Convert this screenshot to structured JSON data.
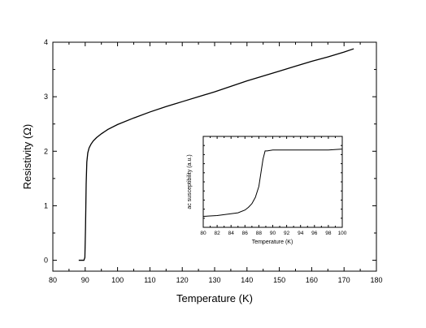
{
  "chart_data": [
    {
      "type": "line",
      "xlabel": "Temperature (K)",
      "ylabel": "Resistivity (Ω)",
      "xlim": [
        80,
        180
      ],
      "ylim": [
        -0.2,
        4.0
      ],
      "xticks": [
        80,
        90,
        100,
        110,
        120,
        130,
        140,
        150,
        160,
        170,
        180
      ],
      "yticks": [
        0,
        1,
        2,
        3,
        4
      ],
      "grid": false,
      "series": [
        {
          "x": [
            88,
            89.6,
            89.9,
            90.1,
            90.3,
            90.5,
            90.8,
            91.2,
            91.8,
            92.5,
            93.5,
            95,
            97,
            100,
            105,
            110,
            115,
            120,
            125,
            130,
            135,
            140,
            145,
            150,
            155,
            160,
            165,
            170,
            173
          ],
          "y": [
            0.0,
            0.0,
            0.05,
            0.6,
            1.4,
            1.8,
            1.97,
            2.06,
            2.13,
            2.19,
            2.25,
            2.32,
            2.4,
            2.49,
            2.61,
            2.72,
            2.82,
            2.91,
            3.0,
            3.09,
            3.19,
            3.29,
            3.38,
            3.47,
            3.56,
            3.65,
            3.73,
            3.82,
            3.88
          ]
        }
      ]
    },
    {
      "type": "line",
      "xlabel": "Temperature (K)",
      "ylabel": "ac susceptibility (a.u.)",
      "xlim": [
        80,
        100
      ],
      "xticks": [
        80,
        82,
        84,
        86,
        88,
        90,
        92,
        94,
        96,
        98,
        100
      ],
      "ylim": [
        0,
        1
      ],
      "grid": false,
      "series": [
        {
          "x": [
            80,
            82,
            84,
            85,
            86,
            86.5,
            87,
            87.5,
            88,
            88.3,
            88.6,
            88.9,
            89.2,
            90,
            92,
            94,
            96,
            98,
            100
          ],
          "y": [
            0.12,
            0.13,
            0.15,
            0.16,
            0.19,
            0.22,
            0.26,
            0.33,
            0.45,
            0.6,
            0.75,
            0.84,
            0.84,
            0.85,
            0.85,
            0.85,
            0.85,
            0.85,
            0.86
          ]
        }
      ]
    }
  ]
}
